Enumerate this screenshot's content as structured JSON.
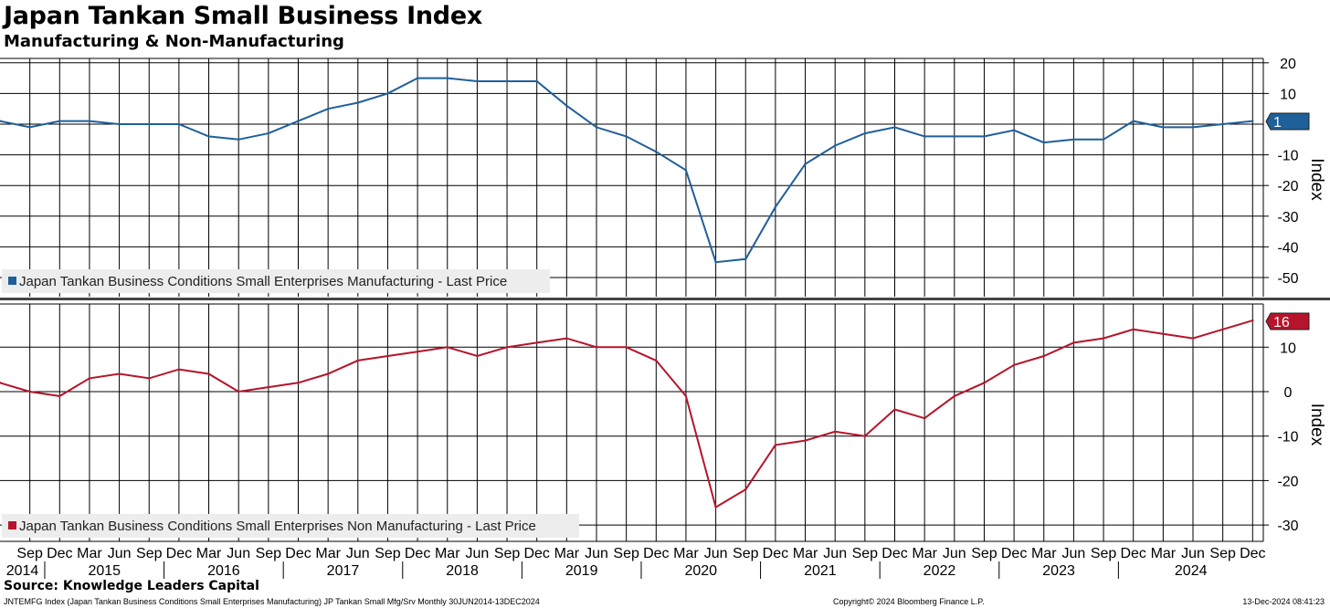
{
  "title": "Japan Tankan Small Business Index",
  "subtitle": "Manufacturing & Non-Manufacturing",
  "source": "Source: Knowledge Leaders Capital",
  "footer": {
    "left": "JNTEMFG Index (Japan Tankan Business Conditions Small Enterprises Manufacturing) JP Tankan Small Mfg/Srv  Monthly 30JUN2014-13DEC2024",
    "center": "Copyright© 2024 Bloomberg Finance L.P.",
    "right": "13-Dec-2024 08:41:23"
  },
  "x_axis": {
    "quarters": [
      "Sep",
      "Dec",
      "Mar",
      "Jun",
      "Sep",
      "Dec",
      "Mar",
      "Jun",
      "Sep",
      "Dec",
      "Mar",
      "Jun",
      "Sep",
      "Dec",
      "Mar",
      "Jun",
      "Sep",
      "Dec",
      "Mar",
      "Jun",
      "Sep",
      "Dec",
      "Mar",
      "Jun",
      "Sep",
      "Dec",
      "Mar",
      "Jun",
      "Sep",
      "Dec",
      "Mar",
      "Jun",
      "Sep",
      "Dec",
      "Mar",
      "Jun",
      "Sep",
      "Dec",
      "Mar",
      "Jun",
      "Sep",
      "Dec"
    ],
    "years": [
      "2014",
      "2015",
      "2016",
      "2017",
      "2018",
      "2019",
      "2020",
      "2021",
      "2022",
      "2023",
      "2024"
    ]
  },
  "colors": {
    "manufacturing": "#1f5f9a",
    "non_manufacturing": "#b5142b",
    "grid": "#000000"
  },
  "chart_data": [
    {
      "type": "line",
      "ylabel": "Index",
      "ylim": [
        -55,
        22
      ],
      "yticks": [
        20,
        10,
        -10,
        -20,
        -30,
        -40,
        -50
      ],
      "grid": true,
      "legend_position": "bottom-left",
      "series": [
        {
          "name": "Japan Tankan Business Conditions Small Enterprises Manufacturing - Last Price",
          "last_value_label": "1",
          "x": [
            "2014-06",
            "2014-09",
            "2014-12",
            "2015-03",
            "2015-06",
            "2015-09",
            "2015-12",
            "2016-03",
            "2016-06",
            "2016-09",
            "2016-12",
            "2017-03",
            "2017-06",
            "2017-09",
            "2017-12",
            "2018-03",
            "2018-06",
            "2018-09",
            "2018-12",
            "2019-03",
            "2019-06",
            "2019-09",
            "2019-12",
            "2020-03",
            "2020-06",
            "2020-09",
            "2020-12",
            "2021-03",
            "2021-06",
            "2021-09",
            "2021-12",
            "2022-03",
            "2022-06",
            "2022-09",
            "2022-12",
            "2023-03",
            "2023-06",
            "2023-09",
            "2023-12",
            "2024-03",
            "2024-06",
            "2024-09",
            "2024-12"
          ],
          "values": [
            1,
            -1,
            1,
            1,
            0,
            0,
            0,
            -4,
            -5,
            -3,
            1,
            5,
            7,
            10,
            15,
            15,
            14,
            14,
            14,
            6,
            -1,
            -4,
            -9,
            -15,
            -45,
            -44,
            -27,
            -13,
            -7,
            -3,
            -1,
            -4,
            -4,
            -4,
            -2,
            -6,
            -5,
            -5,
            1,
            -1,
            -1,
            0,
            1
          ]
        }
      ]
    },
    {
      "type": "line",
      "ylabel": "Index",
      "ylim": [
        -34,
        19
      ],
      "yticks": [
        10,
        0,
        -10,
        -20,
        -30
      ],
      "grid": true,
      "legend_position": "bottom-left",
      "series": [
        {
          "name": "Japan Tankan Business Conditions Small Enterprises Non Manufacturing - Last Price",
          "last_value_label": "16",
          "x": [
            "2014-06",
            "2014-09",
            "2014-12",
            "2015-03",
            "2015-06",
            "2015-09",
            "2015-12",
            "2016-03",
            "2016-06",
            "2016-09",
            "2016-12",
            "2017-03",
            "2017-06",
            "2017-09",
            "2017-12",
            "2018-03",
            "2018-06",
            "2018-09",
            "2018-12",
            "2019-03",
            "2019-06",
            "2019-09",
            "2019-12",
            "2020-03",
            "2020-06",
            "2020-09",
            "2020-12",
            "2021-03",
            "2021-06",
            "2021-09",
            "2021-12",
            "2022-03",
            "2022-06",
            "2022-09",
            "2022-12",
            "2023-03",
            "2023-06",
            "2023-09",
            "2023-12",
            "2024-03",
            "2024-06",
            "2024-09",
            "2024-12"
          ],
          "values": [
            2,
            0,
            -1,
            3,
            4,
            3,
            5,
            4,
            0,
            1,
            2,
            4,
            7,
            8,
            9,
            10,
            8,
            10,
            11,
            12,
            10,
            10,
            7,
            -1,
            -26,
            -22,
            -12,
            -11,
            -9,
            -10,
            -4,
            -6,
            -1,
            2,
            6,
            8,
            11,
            12,
            14,
            13,
            12,
            14,
            16
          ]
        }
      ]
    }
  ]
}
